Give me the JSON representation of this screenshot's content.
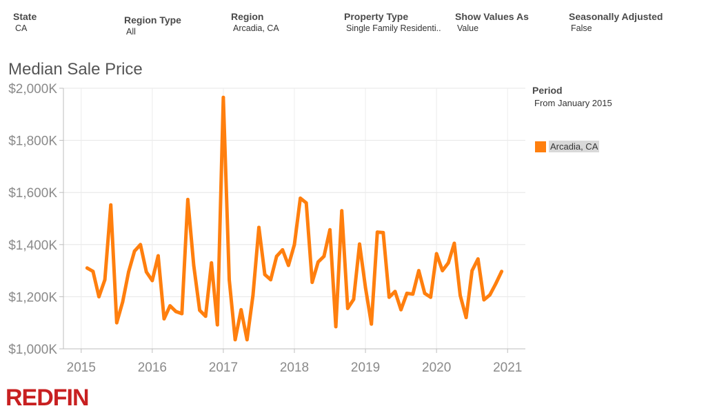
{
  "filters": [
    {
      "label": "State",
      "value": "CA"
    },
    {
      "label": "Region Type",
      "value": "All"
    },
    {
      "label": "Region",
      "value": "Arcadia, CA"
    },
    {
      "label": "Property Type",
      "value": "Single Family Residenti.."
    },
    {
      "label": "Show Values As",
      "value": "Value"
    },
    {
      "label": "Seasonally Adjusted",
      "value": "False"
    }
  ],
  "legend": {
    "title": "Period",
    "subtitle": "From January 2015",
    "item_label": "Arcadia, CA",
    "item_color": "#ff7f0e"
  },
  "logo": {
    "text": "REDFIN",
    "color": "#c82021"
  },
  "chart_data": {
    "type": "line",
    "title": "Median Sale Price",
    "xlabel": "",
    "ylabel": "",
    "xlim": [
      2014.75,
      2021.25
    ],
    "ylim": [
      1000,
      2000
    ],
    "x_ticks": [
      2015,
      2016,
      2017,
      2018,
      2019,
      2020,
      2021
    ],
    "y_ticks": [
      1000,
      1200,
      1400,
      1600,
      1800,
      2000
    ],
    "y_tick_labels": [
      "$1,000K",
      "$1,200K",
      "$1,400K",
      "$1,600K",
      "$1,800K",
      "$2,000K"
    ],
    "grid": true,
    "legend_position": "right",
    "series": [
      {
        "name": "Arcadia, CA",
        "color": "#ff7f0e",
        "x": [
          "2015-02",
          "2015-03",
          "2015-04",
          "2015-05",
          "2015-06",
          "2015-07",
          "2015-08",
          "2015-09",
          "2015-10",
          "2015-11",
          "2015-12",
          "2016-01",
          "2016-02",
          "2016-03",
          "2016-04",
          "2016-05",
          "2016-06",
          "2016-07",
          "2016-08",
          "2016-09",
          "2016-10",
          "2016-11",
          "2016-12",
          "2017-01",
          "2017-02",
          "2017-03",
          "2017-04",
          "2017-05",
          "2017-06",
          "2017-07",
          "2017-08",
          "2017-09",
          "2017-10",
          "2017-11",
          "2017-12",
          "2018-01",
          "2018-02",
          "2018-03",
          "2018-04",
          "2018-05",
          "2018-06",
          "2018-07",
          "2018-08",
          "2018-09",
          "2018-10",
          "2018-11",
          "2018-12",
          "2019-01",
          "2019-02",
          "2019-03",
          "2019-04",
          "2019-05",
          "2019-06",
          "2019-07",
          "2019-08",
          "2019-09",
          "2019-10",
          "2019-11",
          "2019-12",
          "2020-01",
          "2020-02",
          "2020-03",
          "2020-04",
          "2020-05",
          "2020-06",
          "2020-07",
          "2020-08",
          "2020-09",
          "2020-10",
          "2020-11",
          "2020-12"
        ],
        "values": [
          1310,
          1297,
          1200,
          1265,
          1552,
          1100,
          1180,
          1295,
          1375,
          1400,
          1295,
          1262,
          1357,
          1115,
          1165,
          1143,
          1135,
          1573,
          1320,
          1148,
          1125,
          1330,
          1092,
          1965,
          1265,
          1035,
          1150,
          1035,
          1205,
          1466,
          1285,
          1265,
          1355,
          1380,
          1320,
          1400,
          1578,
          1560,
          1255,
          1333,
          1355,
          1457,
          1085,
          1530,
          1155,
          1190,
          1402,
          1235,
          1095,
          1448,
          1446,
          1198,
          1220,
          1150,
          1213,
          1210,
          1300,
          1213,
          1198,
          1365,
          1300,
          1330,
          1405,
          1205,
          1120,
          1300,
          1345,
          1188,
          1207,
          1250,
          1297
        ]
      }
    ]
  }
}
